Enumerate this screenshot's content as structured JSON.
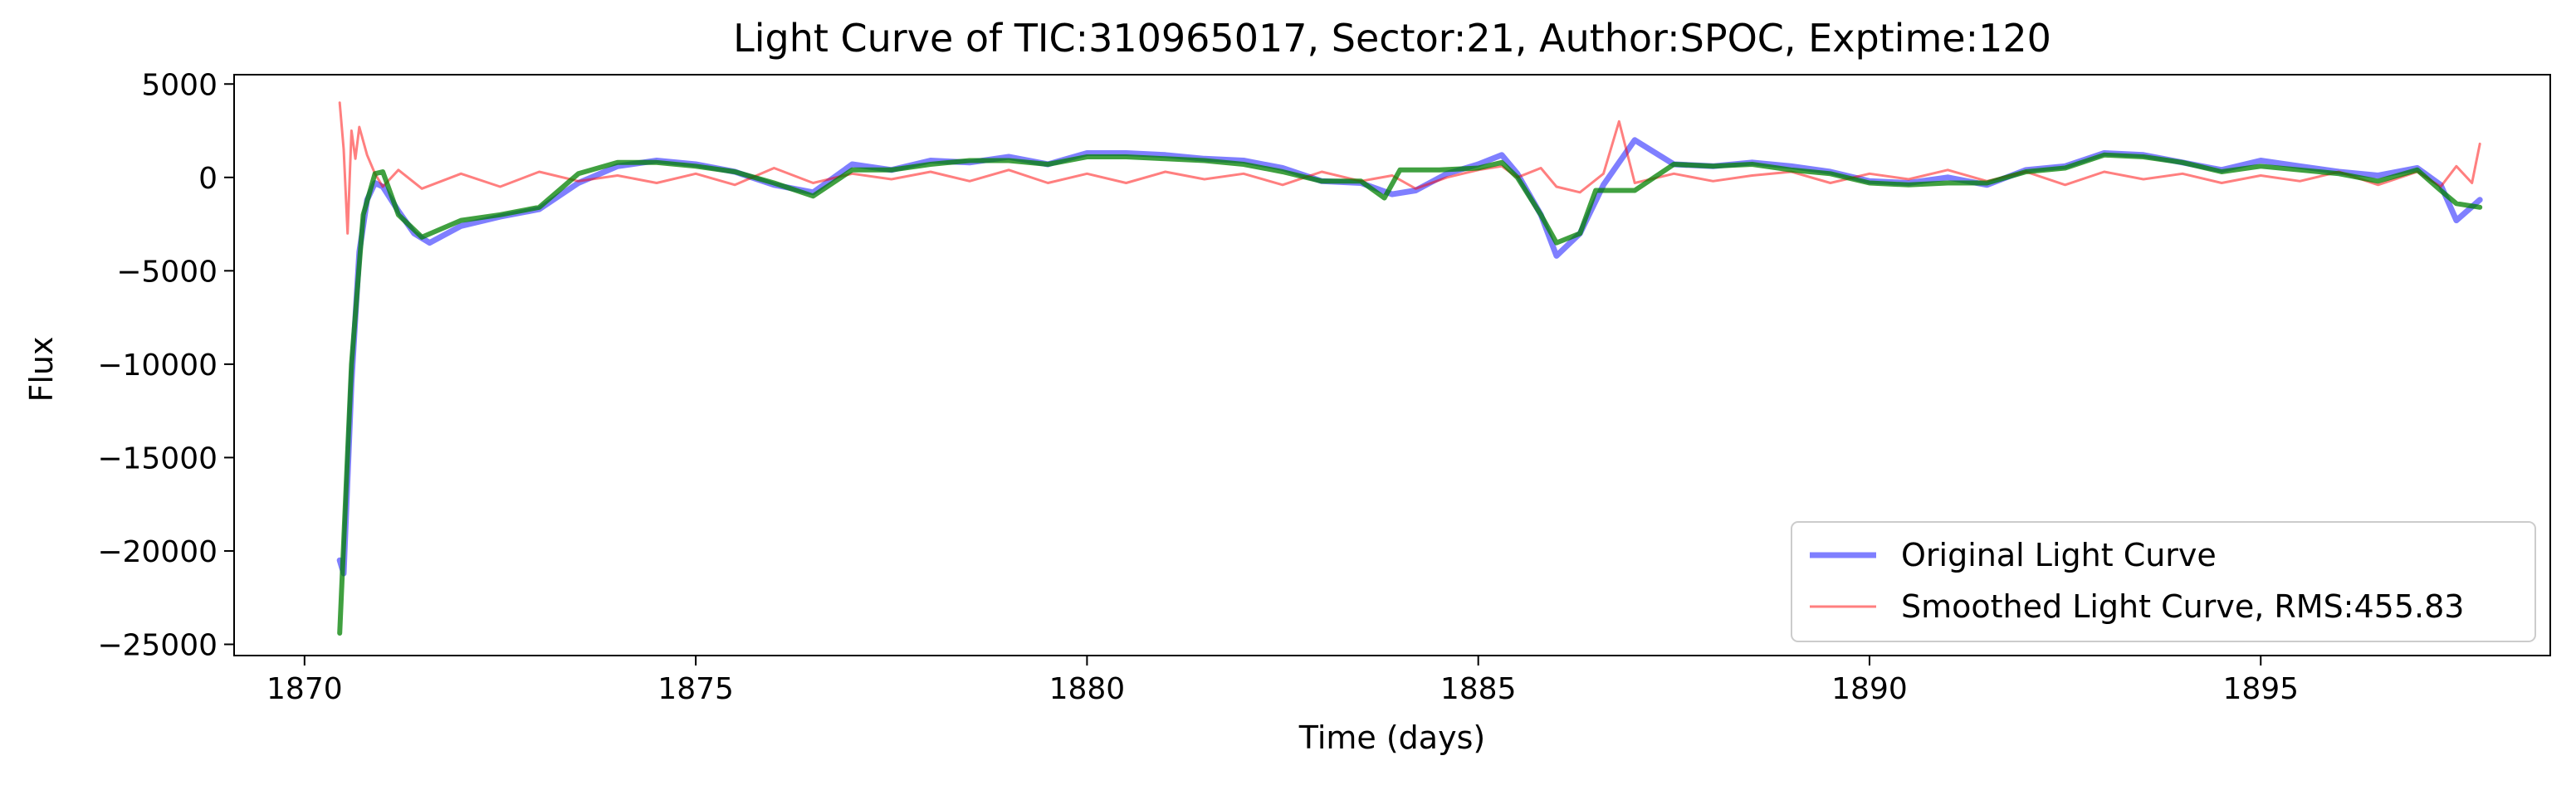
{
  "chart_data": {
    "type": "line",
    "title": "Light Curve of TIC:310965017, Sector:21, Author:SPOC, Exptime:120",
    "xlabel": "Time (days)",
    "ylabel": "Flux",
    "xlim": [
      1869.1,
      1898.7
    ],
    "ylim": [
      -25600,
      5500
    ],
    "xticks": [
      1870,
      1875,
      1880,
      1885,
      1890,
      1895
    ],
    "yticks": [
      5000,
      0,
      -5000,
      -10000,
      -15000,
      -20000,
      -25000
    ],
    "xtick_labels": [
      "1870",
      "1875",
      "1880",
      "1885",
      "1890",
      "1895"
    ],
    "ytick_labels": [
      "5000",
      "0",
      "−5000",
      "−10000",
      "−15000",
      "−20000",
      "−25000"
    ],
    "grid": false,
    "legend_position": "lower right",
    "legend": [
      {
        "label": "Original Light Curve",
        "color": "#0000ff"
      },
      {
        "label": "Smoothed Light Curve, RMS:455.83",
        "color": "#ff0000"
      }
    ],
    "series": [
      {
        "name": "Original Light Curve",
        "color": "#0000ff",
        "opacity": 0.5,
        "x": [
          1870.45,
          1870.5,
          1870.6,
          1870.7,
          1870.8,
          1870.9,
          1871.0,
          1871.2,
          1871.4,
          1871.6,
          1872.0,
          1872.5,
          1873.0,
          1873.5,
          1874.0,
          1874.5,
          1875.0,
          1875.5,
          1876.0,
          1876.5,
          1877.0,
          1877.5,
          1878.0,
          1878.5,
          1879.0,
          1879.5,
          1880.0,
          1880.5,
          1881.0,
          1881.5,
          1882.0,
          1882.5,
          1883.0,
          1883.5,
          1883.9,
          1884.2,
          1884.6,
          1885.0,
          1885.3,
          1885.5,
          1885.8,
          1886.0,
          1886.3,
          1886.6,
          1886.8,
          1887.0,
          1887.5,
          1888.0,
          1888.5,
          1889.0,
          1889.5,
          1890.0,
          1890.5,
          1891.0,
          1891.5,
          1892.0,
          1892.5,
          1893.0,
          1893.5,
          1894.0,
          1894.5,
          1895.0,
          1895.5,
          1896.0,
          1896.5,
          1897.0,
          1897.3,
          1897.5,
          1897.8
        ],
        "y": [
          -20500,
          -21200,
          -11000,
          -4000,
          -1200,
          -300,
          -500,
          -1800,
          -3000,
          -3500,
          -2600,
          -2100,
          -1700,
          -300,
          600,
          900,
          700,
          300,
          -400,
          -800,
          700,
          400,
          900,
          800,
          1100,
          700,
          1300,
          1300,
          1200,
          1000,
          900,
          500,
          -200,
          -300,
          -900,
          -700,
          200,
          700,
          1200,
          200,
          -2000,
          -4200,
          -3000,
          -400,
          800,
          2000,
          700,
          600,
          800,
          600,
          300,
          -200,
          -300,
          0,
          -400,
          400,
          600,
          1300,
          1200,
          800,
          400,
          900,
          600,
          300,
          100,
          500,
          -400,
          -2300,
          -1200
        ]
      },
      {
        "name": "Smoothed Light Curve, RMS:455.83",
        "color": "#ff0000",
        "opacity": 0.5,
        "x": [
          1870.45,
          1870.5,
          1870.55,
          1870.6,
          1870.65,
          1870.7,
          1870.8,
          1870.9,
          1871.0,
          1871.2,
          1871.5,
          1872.0,
          1872.5,
          1873.0,
          1873.5,
          1874.0,
          1874.5,
          1875.0,
          1875.5,
          1876.0,
          1876.5,
          1877.0,
          1877.5,
          1878.0,
          1878.5,
          1879.0,
          1879.5,
          1880.0,
          1880.5,
          1881.0,
          1881.5,
          1882.0,
          1882.5,
          1883.0,
          1883.5,
          1883.9,
          1884.2,
          1884.6,
          1885.0,
          1885.3,
          1885.5,
          1885.8,
          1886.0,
          1886.3,
          1886.6,
          1886.8,
          1887.0,
          1887.5,
          1888.0,
          1888.5,
          1889.0,
          1889.5,
          1890.0,
          1890.5,
          1891.0,
          1891.5,
          1892.0,
          1892.5,
          1893.0,
          1893.5,
          1894.0,
          1894.5,
          1895.0,
          1895.5,
          1896.0,
          1896.5,
          1897.0,
          1897.3,
          1897.5,
          1897.7,
          1897.8
        ],
        "y": [
          4000,
          1500,
          -3000,
          2500,
          1000,
          2700,
          1200,
          200,
          -500,
          400,
          -600,
          200,
          -500,
          300,
          -200,
          100,
          -300,
          200,
          -400,
          500,
          -300,
          200,
          -100,
          300,
          -200,
          400,
          -300,
          200,
          -300,
          300,
          -100,
          200,
          -400,
          300,
          -200,
          100,
          -600,
          0,
          400,
          600,
          0,
          500,
          -500,
          -800,
          200,
          3000,
          -300,
          200,
          -200,
          100,
          300,
          -300,
          200,
          -100,
          400,
          -200,
          300,
          -400,
          300,
          -100,
          200,
          -300,
          100,
          -200,
          300,
          -400,
          300,
          -500,
          600,
          -300,
          1800
        ]
      },
      {
        "name": "",
        "color": "#008000",
        "opacity": 0.75,
        "x": [
          1870.45,
          1870.6,
          1870.75,
          1870.9,
          1871.0,
          1871.2,
          1871.5,
          1872.0,
          1872.5,
          1873.0,
          1873.5,
          1874.0,
          1874.5,
          1875.0,
          1875.5,
          1876.0,
          1876.5,
          1877.0,
          1877.5,
          1878.0,
          1878.5,
          1879.0,
          1879.5,
          1880.0,
          1880.5,
          1881.0,
          1881.5,
          1882.0,
          1882.5,
          1883.0,
          1883.5,
          1883.8,
          1884.0,
          1884.5,
          1885.0,
          1885.3,
          1885.5,
          1885.8,
          1886.0,
          1886.3,
          1886.5,
          1887.0,
          1887.5,
          1888.0,
          1888.5,
          1889.0,
          1889.5,
          1890.0,
          1890.5,
          1891.0,
          1891.5,
          1892.0,
          1892.5,
          1893.0,
          1893.5,
          1894.0,
          1894.5,
          1895.0,
          1895.5,
          1896.0,
          1896.5,
          1897.0,
          1897.3,
          1897.5,
          1897.8
        ],
        "y": [
          -24400,
          -10000,
          -2000,
          200,
          300,
          -2000,
          -3200,
          -2300,
          -2000,
          -1600,
          200,
          800,
          800,
          600,
          300,
          -300,
          -1000,
          400,
          400,
          700,
          900,
          900,
          700,
          1100,
          1100,
          1000,
          900,
          700,
          300,
          -200,
          -200,
          -1100,
          400,
          400,
          500,
          800,
          0,
          -2000,
          -3500,
          -3000,
          -700,
          -700,
          700,
          600,
          700,
          400,
          200,
          -300,
          -400,
          -300,
          -300,
          300,
          500,
          1200,
          1100,
          800,
          300,
          600,
          400,
          200,
          -200,
          400,
          -700,
          -1400,
          -1600
        ]
      }
    ]
  }
}
